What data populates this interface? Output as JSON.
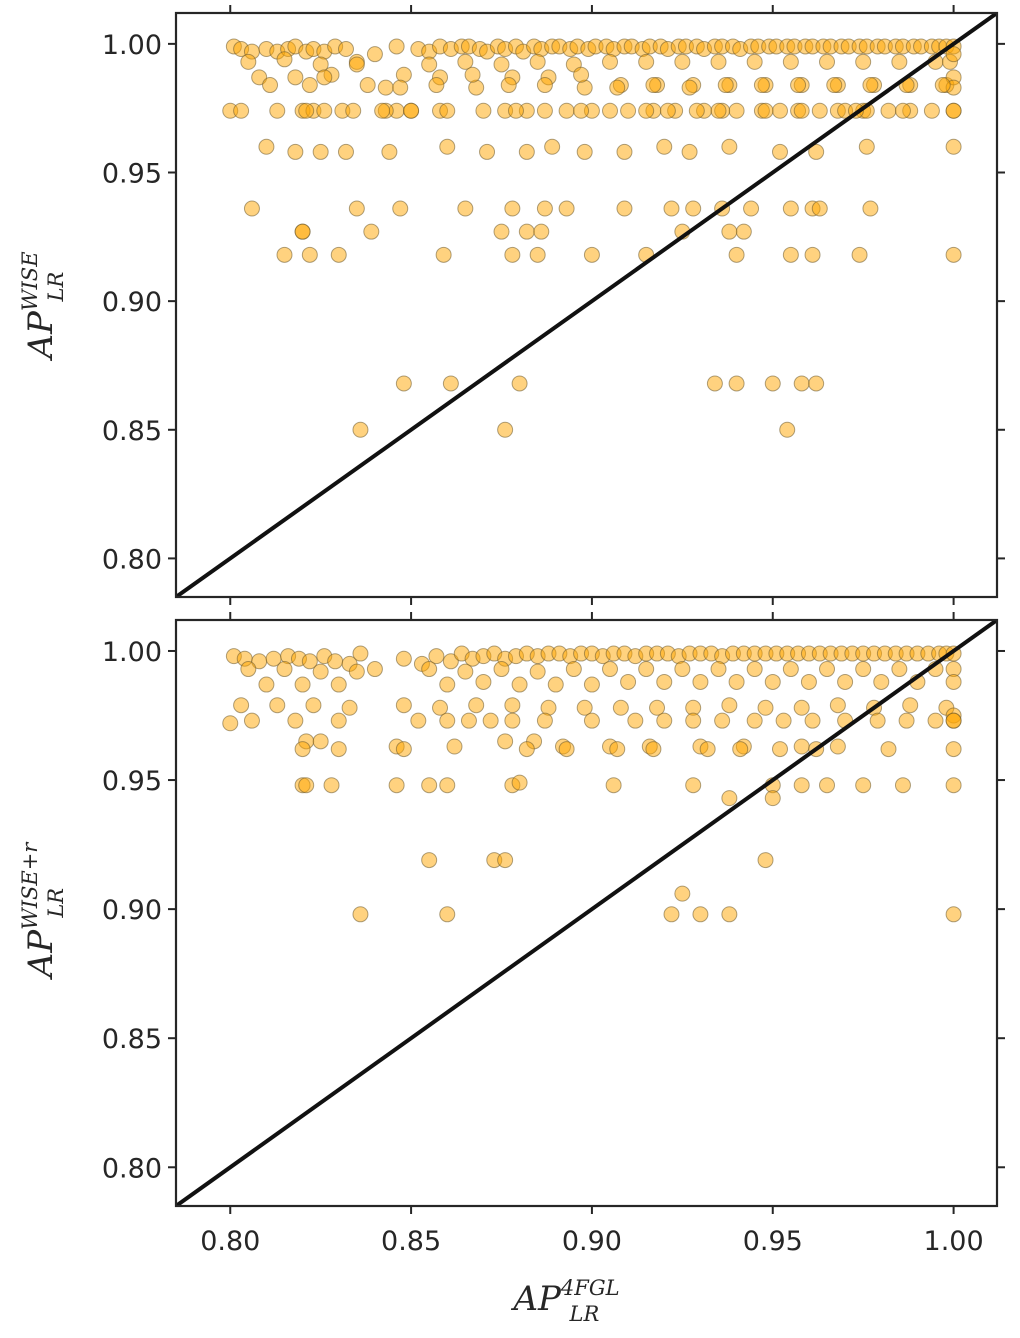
{
  "figure": {
    "background": "#ffffff",
    "frame_color": "#262626",
    "marker_fill": "#ffa500",
    "marker_opacity": 0.5,
    "marker_edge": "#6b5a2e",
    "diagonal_color": "#111111"
  },
  "chart_data": [
    {
      "type": "scatter",
      "title": "",
      "xlabel": {
        "base": "AP",
        "sup": "4FGL",
        "sub": "LR"
      },
      "ylabel": {
        "base": "AP",
        "sup": "WISE",
        "sub": "LR"
      },
      "xlim": [
        0.785,
        1.012
      ],
      "ylim": [
        0.785,
        1.012
      ],
      "xticks": [
        0.8,
        0.85,
        0.9,
        0.95,
        1.0
      ],
      "yticks": [
        0.8,
        0.85,
        0.9,
        0.95,
        1.0
      ],
      "ytick_labels": [
        "0.80",
        "0.85",
        "0.90",
        "0.95",
        "1.00"
      ],
      "show_xtick_labels": false,
      "grid": false,
      "reference_line": "y = x",
      "series": [
        {
          "x": [
            0.801,
            0.803,
            0.806,
            0.81,
            0.813,
            0.816,
            0.818,
            0.821,
            0.823,
            0.826,
            0.829,
            0.832,
            0.835,
            0.84,
            0.846,
            0.852,
            0.855,
            0.858,
            0.861,
            0.864,
            0.866,
            0.869,
            0.871,
            0.874,
            0.876,
            0.879,
            0.881,
            0.884,
            0.886,
            0.889,
            0.891,
            0.894,
            0.896,
            0.899,
            0.901,
            0.904,
            0.906,
            0.909,
            0.911,
            0.914,
            0.916,
            0.919,
            0.921,
            0.924,
            0.926,
            0.929,
            0.931,
            0.934,
            0.936,
            0.939,
            0.941,
            0.944,
            0.946,
            0.949,
            0.951,
            0.954,
            0.956,
            0.959,
            0.961,
            0.964,
            0.966,
            0.969,
            0.971,
            0.974,
            0.976,
            0.979,
            0.981,
            0.984,
            0.986,
            0.989,
            0.991,
            0.994,
            0.996,
            0.998,
            1.0,
            0.805,
            0.815,
            0.825,
            0.835,
            0.855,
            0.865,
            0.875,
            0.885,
            0.895,
            0.905,
            0.915,
            0.925,
            0.935,
            0.945,
            0.955,
            0.965,
            0.975,
            0.985,
            0.995,
            0.999,
            0.808,
            0.818,
            0.828,
            0.838,
            0.848,
            0.858,
            0.868,
            0.878,
            0.888,
            0.898,
            0.908,
            0.918,
            0.928,
            0.938,
            0.948,
            0.958,
            0.968,
            0.978,
            0.988,
            0.998,
            1.0,
            1.0,
            1.0,
            0.811,
            0.822,
            0.826,
            0.843,
            0.847,
            0.857,
            0.867,
            0.877,
            0.887,
            0.897,
            0.907,
            0.917,
            0.927,
            0.937,
            0.947,
            0.957,
            0.967,
            0.977,
            0.987,
            0.997,
            0.82,
            0.823,
            0.831,
            0.834,
            0.846,
            0.858,
            0.86,
            0.876,
            0.882,
            0.893,
            0.9,
            0.905,
            0.91,
            0.917,
            0.923,
            0.931,
            0.94,
            0.947,
            0.952,
            0.957,
            0.963,
            0.968,
            0.975,
            0.982,
            0.988,
            0.994,
            1.0,
            0.8,
            0.803,
            0.813,
            0.821,
            0.826,
            0.843,
            0.85,
            0.87,
            0.879,
            0.887,
            0.897,
            0.915,
            0.921,
            0.929,
            0.936,
            0.948,
            0.958,
            0.97,
            0.976,
            0.986,
            1.0,
            0.81,
            0.818,
            0.825,
            0.832,
            0.844,
            0.86,
            0.871,
            0.882,
            0.889,
            0.898,
            0.909,
            0.92,
            0.927,
            0.938,
            0.952,
            0.962,
            0.976,
            1.0,
            0.806,
            0.835,
            0.847,
            0.865,
            0.878,
            0.887,
            0.893,
            0.909,
            0.922,
            0.928,
            0.936,
            0.944,
            0.955,
            0.961,
            0.963,
            0.977,
            0.82,
            0.82,
            0.839,
            0.875,
            0.882,
            0.886,
            0.925,
            0.942,
            0.938,
            0.815,
            0.822,
            0.83,
            0.859,
            0.878,
            0.885,
            0.9,
            0.915,
            0.94,
            0.955,
            0.961,
            0.974,
            1.0,
            0.848,
            0.861,
            0.88,
            0.934,
            0.94,
            0.95,
            0.958,
            0.962,
            0.836,
            0.876,
            0.954,
            0.842,
            0.85,
            0.935,
            0.973
          ],
          "y": [
            0.999,
            0.998,
            0.997,
            0.998,
            0.997,
            0.998,
            0.999,
            0.997,
            0.998,
            0.997,
            0.999,
            0.998,
            0.993,
            0.996,
            0.999,
            0.998,
            0.997,
            0.999,
            0.998,
            0.999,
            0.999,
            0.998,
            0.997,
            0.999,
            0.998,
            0.999,
            0.997,
            0.999,
            0.998,
            0.999,
            0.999,
            0.998,
            0.999,
            0.998,
            0.999,
            0.999,
            0.998,
            0.999,
            0.999,
            0.998,
            0.999,
            0.999,
            0.998,
            0.999,
            0.999,
            0.999,
            0.998,
            0.999,
            0.999,
            0.999,
            0.998,
            0.999,
            0.999,
            0.999,
            0.999,
            0.999,
            0.999,
            0.999,
            0.999,
            0.999,
            0.999,
            0.999,
            0.999,
            0.999,
            0.999,
            0.999,
            0.999,
            0.999,
            0.999,
            0.999,
            0.999,
            0.999,
            0.999,
            0.999,
            0.999,
            0.993,
            0.994,
            0.992,
            0.992,
            0.992,
            0.993,
            0.992,
            0.993,
            0.992,
            0.993,
            0.993,
            0.993,
            0.993,
            0.993,
            0.993,
            0.993,
            0.993,
            0.993,
            0.993,
            0.993,
            0.987,
            0.987,
            0.988,
            0.984,
            0.988,
            0.987,
            0.983,
            0.987,
            0.987,
            0.983,
            0.984,
            0.984,
            0.984,
            0.984,
            0.984,
            0.984,
            0.984,
            0.984,
            0.984,
            0.984,
            0.987,
            0.983,
            0.996,
            0.984,
            0.984,
            0.987,
            0.983,
            0.983,
            0.984,
            0.988,
            0.984,
            0.984,
            0.988,
            0.983,
            0.984,
            0.983,
            0.984,
            0.984,
            0.984,
            0.984,
            0.984,
            0.984,
            0.984,
            0.974,
            0.974,
            0.974,
            0.974,
            0.974,
            0.974,
            0.974,
            0.974,
            0.974,
            0.974,
            0.974,
            0.974,
            0.974,
            0.974,
            0.974,
            0.974,
            0.974,
            0.974,
            0.974,
            0.974,
            0.974,
            0.974,
            0.974,
            0.974,
            0.974,
            0.974,
            0.974,
            0.974,
            0.974,
            0.974,
            0.974,
            0.974,
            0.974,
            0.974,
            0.974,
            0.974,
            0.974,
            0.974,
            0.974,
            0.974,
            0.974,
            0.974,
            0.974,
            0.974,
            0.974,
            0.974,
            0.974,
            0.974,
            0.96,
            0.958,
            0.958,
            0.958,
            0.958,
            0.96,
            0.958,
            0.958,
            0.96,
            0.958,
            0.958,
            0.96,
            0.958,
            0.96,
            0.958,
            0.958,
            0.96,
            0.96,
            0.936,
            0.936,
            0.936,
            0.936,
            0.936,
            0.936,
            0.936,
            0.936,
            0.936,
            0.936,
            0.936,
            0.936,
            0.936,
            0.936,
            0.936,
            0.936,
            0.927,
            0.927,
            0.927,
            0.927,
            0.927,
            0.927,
            0.927,
            0.927,
            0.927,
            0.918,
            0.918,
            0.918,
            0.918,
            0.918,
            0.918,
            0.918,
            0.918,
            0.918,
            0.918,
            0.918,
            0.918,
            0.918,
            0.868,
            0.868,
            0.868,
            0.868,
            0.868,
            0.868,
            0.868,
            0.868,
            0.85,
            0.85,
            0.85,
            0.974,
            0.974,
            0.974,
            0.974
          ]
        }
      ]
    },
    {
      "type": "scatter",
      "title": "",
      "xlabel": {
        "base": "AP",
        "sup": "4FGL",
        "sub": "LR"
      },
      "ylabel": {
        "base": "AP",
        "sup": "WISE+r",
        "sub": "LR"
      },
      "xlim": [
        0.785,
        1.012
      ],
      "ylim": [
        0.785,
        1.012
      ],
      "xticks": [
        0.8,
        0.85,
        0.9,
        0.95,
        1.0
      ],
      "yticks": [
        0.8,
        0.85,
        0.9,
        0.95,
        1.0
      ],
      "xtick_labels": [
        "0.80",
        "0.85",
        "0.90",
        "0.95",
        "1.00"
      ],
      "ytick_labels": [
        "0.80",
        "0.85",
        "0.90",
        "0.95",
        "1.00"
      ],
      "show_xtick_labels": true,
      "grid": false,
      "reference_line": "y = x",
      "series": [
        {
          "x": [
            0.801,
            0.804,
            0.808,
            0.812,
            0.816,
            0.819,
            0.822,
            0.826,
            0.829,
            0.833,
            0.836,
            0.84,
            0.848,
            0.853,
            0.857,
            0.861,
            0.864,
            0.867,
            0.87,
            0.873,
            0.876,
            0.879,
            0.882,
            0.885,
            0.888,
            0.891,
            0.894,
            0.897,
            0.9,
            0.903,
            0.906,
            0.909,
            0.912,
            0.915,
            0.918,
            0.921,
            0.924,
            0.927,
            0.93,
            0.933,
            0.936,
            0.939,
            0.942,
            0.945,
            0.948,
            0.951,
            0.954,
            0.957,
            0.96,
            0.963,
            0.966,
            0.969,
            0.972,
            0.975,
            0.978,
            0.981,
            0.984,
            0.987,
            0.99,
            0.993,
            0.996,
            0.998,
            1.0,
            0.805,
            0.815,
            0.825,
            0.835,
            0.855,
            0.865,
            0.875,
            0.885,
            0.895,
            0.905,
            0.915,
            0.925,
            0.935,
            0.945,
            0.955,
            0.965,
            0.975,
            0.985,
            0.995,
            1.0,
            0.81,
            0.82,
            0.83,
            0.86,
            0.87,
            0.88,
            0.89,
            0.9,
            0.91,
            0.92,
            0.93,
            0.94,
            0.95,
            0.96,
            0.97,
            0.98,
            0.99,
            1.0,
            0.803,
            0.813,
            0.823,
            0.833,
            0.848,
            0.858,
            0.868,
            0.878,
            0.888,
            0.898,
            0.908,
            0.918,
            0.928,
            0.938,
            0.948,
            0.958,
            0.968,
            0.978,
            0.988,
            0.998,
            1.0,
            1.0,
            0.8,
            0.806,
            0.818,
            0.83,
            0.852,
            0.86,
            0.866,
            0.872,
            0.878,
            0.887,
            0.9,
            0.912,
            0.92,
            0.928,
            0.936,
            0.945,
            0.953,
            0.961,
            0.97,
            0.979,
            0.987,
            0.995,
            1.0,
            0.821,
            0.825,
            0.846,
            0.862,
            0.876,
            0.884,
            0.892,
            0.905,
            0.916,
            0.93,
            0.942,
            0.958,
            0.968,
            0.82,
            0.83,
            0.848,
            0.882,
            0.893,
            0.907,
            0.917,
            0.932,
            0.941,
            0.952,
            0.962,
            0.982,
            1.0,
            0.82,
            0.821,
            0.828,
            0.846,
            0.855,
            0.86,
            0.878,
            0.88,
            0.906,
            0.928,
            0.95,
            0.958,
            0.965,
            0.975,
            0.986,
            1.0,
            0.938,
            0.95,
            0.855,
            0.873,
            0.876,
            0.948,
            0.925,
            0.836,
            0.86,
            0.922,
            0.93,
            0.938,
            1.0
          ],
          "y": [
            0.998,
            0.997,
            0.996,
            0.997,
            0.998,
            0.997,
            0.996,
            0.998,
            0.996,
            0.995,
            0.999,
            0.993,
            0.997,
            0.995,
            0.998,
            0.996,
            0.999,
            0.997,
            0.998,
            0.999,
            0.997,
            0.998,
            0.999,
            0.998,
            0.999,
            0.999,
            0.998,
            0.999,
            0.999,
            0.998,
            0.999,
            0.999,
            0.998,
            0.999,
            0.999,
            0.999,
            0.998,
            0.999,
            0.999,
            0.999,
            0.998,
            0.999,
            0.999,
            0.999,
            0.999,
            0.999,
            0.999,
            0.999,
            0.999,
            0.999,
            0.999,
            0.999,
            0.999,
            0.999,
            0.999,
            0.999,
            0.999,
            0.999,
            0.999,
            0.999,
            0.999,
            0.999,
            0.999,
            0.993,
            0.993,
            0.992,
            0.992,
            0.993,
            0.992,
            0.993,
            0.992,
            0.993,
            0.993,
            0.993,
            0.993,
            0.993,
            0.993,
            0.993,
            0.993,
            0.993,
            0.993,
            0.993,
            0.993,
            0.987,
            0.987,
            0.987,
            0.987,
            0.988,
            0.987,
            0.987,
            0.987,
            0.988,
            0.988,
            0.988,
            0.988,
            0.988,
            0.988,
            0.988,
            0.988,
            0.988,
            0.988,
            0.979,
            0.979,
            0.979,
            0.978,
            0.979,
            0.978,
            0.979,
            0.979,
            0.978,
            0.978,
            0.978,
            0.978,
            0.978,
            0.979,
            0.978,
            0.978,
            0.979,
            0.978,
            0.979,
            0.978,
            0.975,
            0.973,
            0.972,
            0.973,
            0.973,
            0.973,
            0.973,
            0.973,
            0.973,
            0.973,
            0.973,
            0.973,
            0.973,
            0.973,
            0.973,
            0.973,
            0.973,
            0.973,
            0.973,
            0.973,
            0.973,
            0.973,
            0.973,
            0.973,
            0.973,
            0.965,
            0.965,
            0.963,
            0.963,
            0.965,
            0.965,
            0.963,
            0.963,
            0.963,
            0.963,
            0.963,
            0.963,
            0.963,
            0.962,
            0.962,
            0.962,
            0.962,
            0.962,
            0.962,
            0.962,
            0.962,
            0.962,
            0.962,
            0.962,
            0.962,
            0.962,
            0.948,
            0.948,
            0.948,
            0.948,
            0.948,
            0.948,
            0.948,
            0.949,
            0.948,
            0.948,
            0.948,
            0.948,
            0.948,
            0.948,
            0.948,
            0.948,
            0.943,
            0.943,
            0.919,
            0.919,
            0.919,
            0.919,
            0.906,
            0.898,
            0.898,
            0.898,
            0.898,
            0.898,
            0.898
          ]
        }
      ]
    }
  ]
}
